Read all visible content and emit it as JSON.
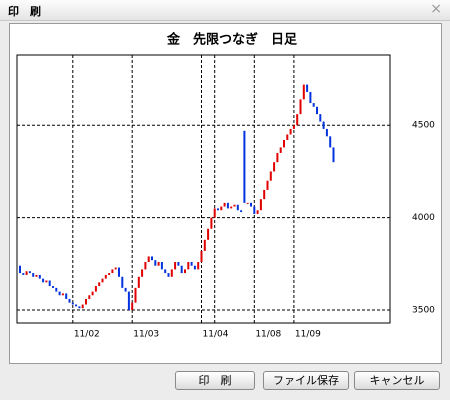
{
  "window": {
    "title": "印　刷",
    "close": "×"
  },
  "chart_data": {
    "type": "candlestick",
    "title": "金　先限つなぎ　日足",
    "up_color": "#e00000",
    "down_color": "#0033dd",
    "open": [
      3740,
      3700,
      3690,
      3710,
      3700,
      3680,
      3690,
      3670,
      3650,
      3660,
      3630,
      3620,
      3600,
      3580,
      3590,
      3560,
      3540,
      3530,
      3520,
      3510,
      3530,
      3560,
      3580,
      3600,
      3630,
      3650,
      3670,
      3690,
      3700,
      3720,
      3730,
      3680,
      3620,
      3600,
      3500,
      3540,
      3620,
      3680,
      3720,
      3760,
      3790,
      3770,
      3740,
      3760,
      3720,
      3700,
      3680,
      3720,
      3760,
      3740,
      3700,
      3720,
      3760,
      3740,
      3720,
      3760,
      3820,
      3880,
      3940,
      4000,
      4050,
      4040,
      4060,
      4080,
      4050,
      4060,
      4070,
      4040,
      4470,
      4080,
      4080,
      4060,
      4020,
      4040,
      4100,
      4150,
      4200,
      4250,
      4300,
      4350,
      4380,
      4420,
      4450,
      4480,
      4500,
      4560,
      4640,
      4720,
      4680,
      4620,
      4600,
      4560,
      4520,
      4480,
      4440,
      4380
    ],
    "close": [
      3700,
      3690,
      3710,
      3700,
      3680,
      3690,
      3670,
      3650,
      3660,
      3630,
      3620,
      3600,
      3580,
      3590,
      3560,
      3540,
      3530,
      3520,
      3510,
      3530,
      3560,
      3580,
      3600,
      3630,
      3650,
      3670,
      3690,
      3700,
      3720,
      3730,
      3680,
      3620,
      3600,
      3500,
      3540,
      3620,
      3680,
      3720,
      3760,
      3790,
      3770,
      3740,
      3760,
      3720,
      3700,
      3680,
      3720,
      3760,
      3740,
      3700,
      3720,
      3760,
      3740,
      3720,
      3760,
      3820,
      3880,
      3940,
      4000,
      4050,
      4040,
      4060,
      4080,
      4050,
      4060,
      4070,
      4040,
      4030,
      4080,
      4080,
      4060,
      4020,
      4040,
      4100,
      4150,
      4200,
      4250,
      4300,
      4350,
      4380,
      4420,
      4450,
      4480,
      4500,
      4560,
      4640,
      4720,
      4680,
      4620,
      4600,
      4560,
      4520,
      4480,
      4440,
      4380,
      4300
    ],
    "ylim": [
      3430,
      4880
    ],
    "yticks": [
      3500,
      4000,
      4500
    ],
    "grid": true,
    "xticks": [
      {
        "value": 16,
        "label": "11/02"
      },
      {
        "value": 34,
        "label": "11/03"
      },
      {
        "value": 55,
        "label": "11/04"
      },
      {
        "value": 59,
        "label": null
      },
      {
        "value": 71,
        "label": "11/08"
      },
      {
        "value": 83,
        "label": "11/09"
      }
    ]
  },
  "buttons": [
    "印　刷",
    "ファイル保存",
    "キャンセル"
  ]
}
